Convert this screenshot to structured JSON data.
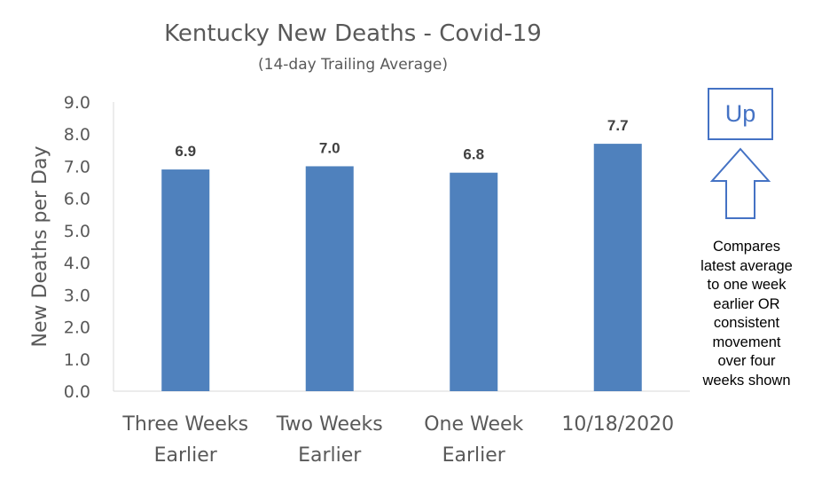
{
  "chart_data": {
    "type": "bar",
    "title": "Kentucky New Deaths - Covid-19",
    "subtitle": "(14-day Trailing Average)",
    "ylabel": "New Deaths per Day",
    "xlabel": "",
    "categories": [
      [
        "Three Weeks",
        "Earlier"
      ],
      [
        "Two Weeks",
        "Earlier"
      ],
      [
        "One Week",
        "Earlier"
      ],
      [
        "10/18/2020"
      ]
    ],
    "values": [
      6.9,
      7.0,
      6.8,
      7.7
    ],
    "data_labels": [
      "6.9",
      "7.0",
      "6.8",
      "7.7"
    ],
    "ylim": [
      0,
      9
    ],
    "yticks": [
      "0.0",
      "1.0",
      "2.0",
      "3.0",
      "4.0",
      "5.0",
      "6.0",
      "7.0",
      "8.0",
      "9.0"
    ],
    "grid": false,
    "bar_color": "#4f81bd"
  },
  "trend": {
    "label": "Up",
    "arrow": "up-arrow-icon",
    "color": "#4472c4"
  },
  "note": {
    "lines": [
      "Compares",
      "latest average",
      "to one week",
      "earlier OR",
      "consistent",
      "movement",
      "over four",
      "weeks shown"
    ]
  }
}
